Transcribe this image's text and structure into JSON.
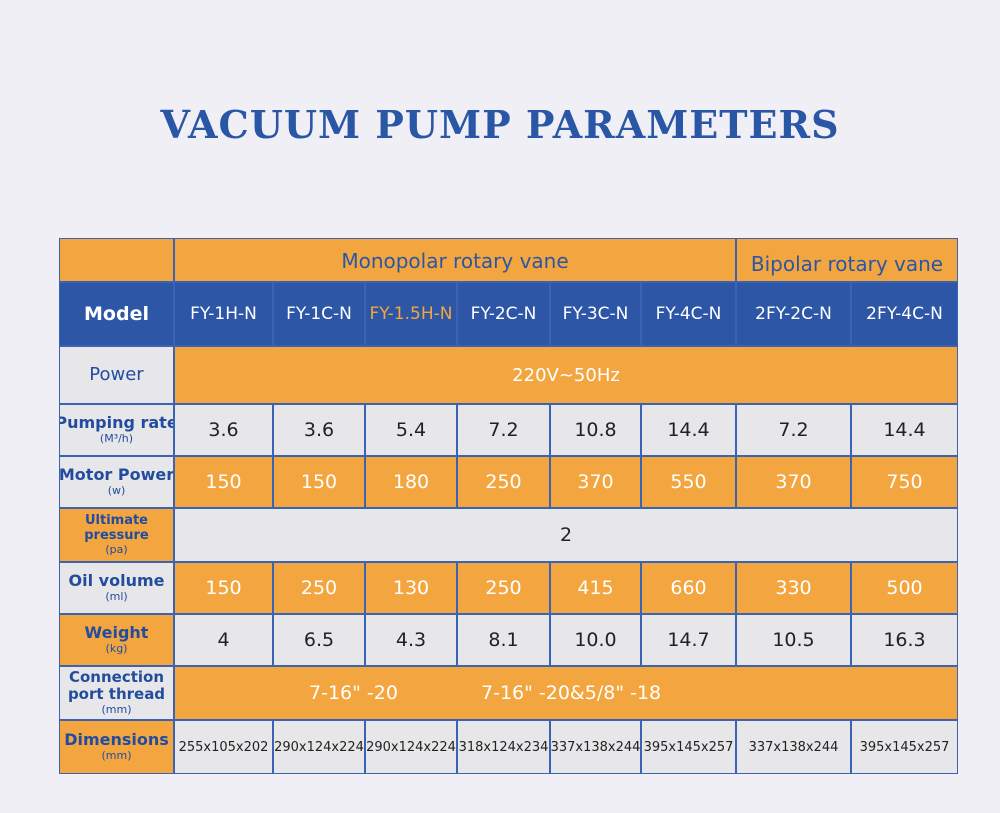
{
  "title": "VACUUM PUMP PARAMETERS",
  "groups": {
    "monopolar": "Monopolar rotary vane",
    "bipolar": "Bipolar rotary vane"
  },
  "rows": {
    "model": {
      "label": "Model",
      "values": [
        "FY-1H-N",
        "FY-1C-N",
        "FY-1.5H-N",
        "FY-2C-N",
        "FY-3C-N",
        "FY-4C-N",
        "2FY-2C-N",
        "2FY-4C-N"
      ]
    },
    "power": {
      "label": "Power",
      "value": "220V~50Hz"
    },
    "pumping_rate": {
      "label": "Pumping rate",
      "unit": "(M³/h)",
      "values": [
        "3.6",
        "3.6",
        "5.4",
        "7.2",
        "10.8",
        "14.4",
        "7.2",
        "14.4"
      ]
    },
    "motor_power": {
      "label": "Motor Power",
      "unit": "(w)",
      "values": [
        "150",
        "150",
        "180",
        "250",
        "370",
        "550",
        "370",
        "750"
      ]
    },
    "ultimate_pressure": {
      "label1": "Ultimate",
      "label2": "pressure",
      "unit": "(pa)",
      "value": "2"
    },
    "oil_volume": {
      "label": "Oil volume",
      "unit": "(ml)",
      "values": [
        "150",
        "250",
        "130",
        "250",
        "415",
        "660",
        "330",
        "500"
      ]
    },
    "weight": {
      "label": "Weight",
      "unit": "(kg)",
      "values": [
        "4",
        "6.5",
        "4.3",
        "8.1",
        "10.0",
        "14.7",
        "10.5",
        "16.3"
      ]
    },
    "connection": {
      "label1": "Connection",
      "label2": "port thread",
      "unit": "(mm)",
      "value1": "7-16\" -20",
      "value2": "7-16\" -20&5/8\" -18"
    },
    "dimensions": {
      "label": "Dimensions",
      "unit": "(mm)",
      "values": [
        "255x105x202",
        "290x124x224",
        "290x124x224",
        "318x124x234",
        "337x138x244",
        "395x145x257",
        "337x138x244",
        "395x145x257"
      ]
    }
  }
}
